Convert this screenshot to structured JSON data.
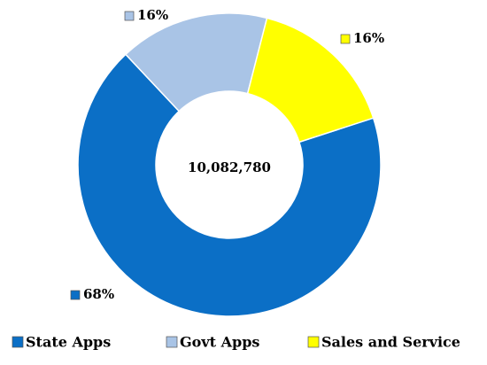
{
  "chart_data": {
    "type": "donut",
    "categories": [
      "State Apps",
      "Govt Apps",
      "Sales and Service"
    ],
    "values": [
      68,
      16,
      16
    ],
    "value_labels": [
      "68%",
      "16%",
      "16%"
    ],
    "colors": [
      "#0b6fc6",
      "#a9c4e6",
      "#ffff00"
    ],
    "center_label": "10,082,780",
    "legend": "bottom"
  }
}
